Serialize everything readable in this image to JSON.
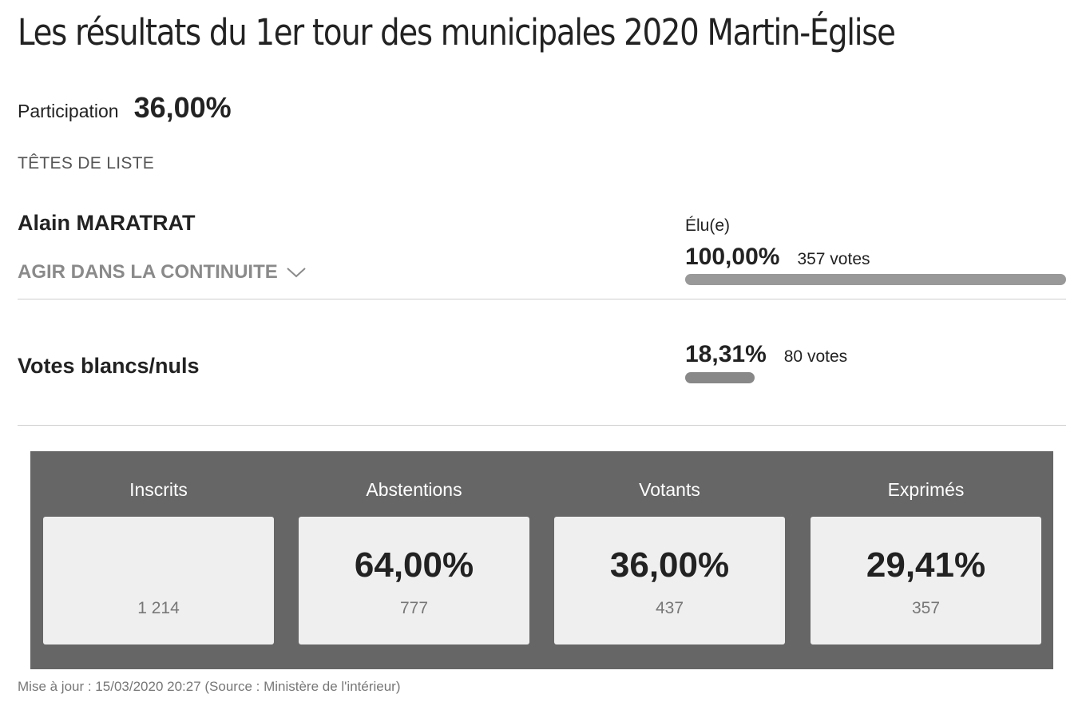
{
  "page": {
    "title": "Les résultats du 1er tour des municipales 2020 Martin-Église"
  },
  "participation": {
    "label": "Participation",
    "value": "36,00%"
  },
  "section_label": "TÊTES DE LISTE",
  "candidates": [
    {
      "name": "Alain MARATRAT",
      "list": "AGIR DANS LA CONTINUITE",
      "status": "Élu(e)",
      "percent": "100,00%",
      "votes": "357 votes",
      "share": 1.0,
      "bar_color": "#999999"
    }
  ],
  "blank_votes": {
    "label": "Votes blancs/nuls",
    "percent": "18,31%",
    "votes": "80 votes",
    "share": 0.1831,
    "bar_color": "#888888"
  },
  "stats": [
    {
      "label": "Inscrits",
      "percent": "",
      "count": "1 214"
    },
    {
      "label": "Abstentions",
      "percent": "64,00%",
      "count": "777"
    },
    {
      "label": "Votants",
      "percent": "36,00%",
      "count": "437"
    },
    {
      "label": "Exprimés",
      "percent": "29,41%",
      "count": "357"
    }
  ],
  "footer": "Mise à jour : 15/03/2020 20:27 (Source : Ministère de l'intérieur)",
  "colors": {
    "stats_background": "#666666",
    "stat_box": "#efefef"
  }
}
